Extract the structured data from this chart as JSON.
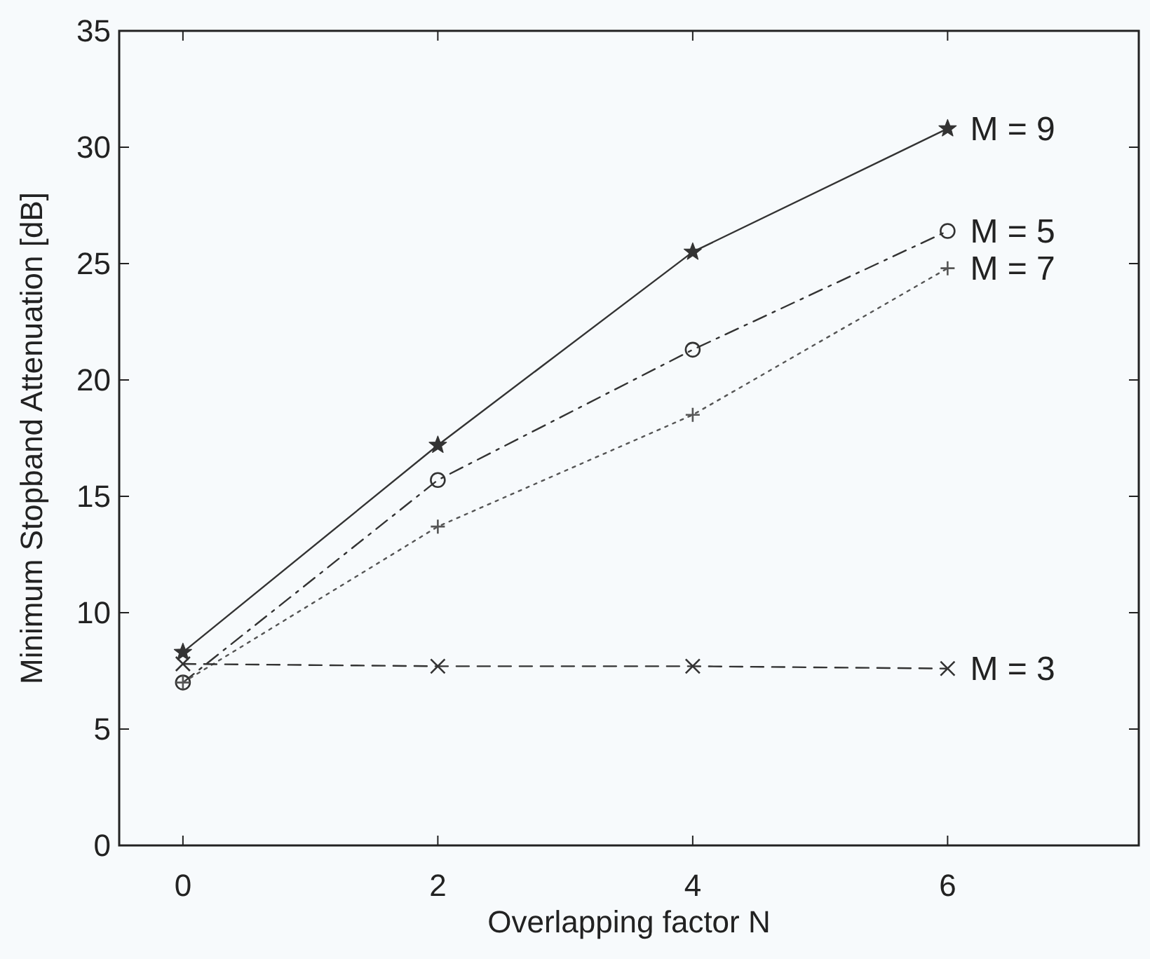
{
  "chart_data": {
    "type": "line",
    "xlabel": "Overlapping factor N",
    "ylabel": "Minimum Stopband Attenuation [dB]",
    "x": [
      0,
      2,
      4,
      6
    ],
    "series": [
      {
        "name": "M = 9",
        "color": "#333333",
        "values": [
          8.3,
          17.2,
          25.5,
          30.8
        ],
        "marker": "star",
        "line_style": "solid"
      },
      {
        "name": "M = 5",
        "color": "#333333",
        "values": [
          7.0,
          15.7,
          21.3,
          26.4
        ],
        "marker": "circle",
        "line_style": "dashdot"
      },
      {
        "name": "M = 7",
        "color": "#555555",
        "values": [
          7.0,
          13.7,
          18.5,
          24.8
        ],
        "marker": "plus",
        "line_style": "dotted"
      },
      {
        "name": "M = 3",
        "color": "#333333",
        "values": [
          7.8,
          7.7,
          7.7,
          7.6
        ],
        "marker": "cross",
        "line_style": "dashed"
      }
    ],
    "xlim": [
      -0.5,
      7.5
    ],
    "xticks": [
      0,
      2,
      4,
      6
    ],
    "ylim": [
      0,
      35
    ],
    "yticks": [
      0,
      5,
      10,
      15,
      20,
      25,
      30,
      35
    ],
    "grid": false
  }
}
